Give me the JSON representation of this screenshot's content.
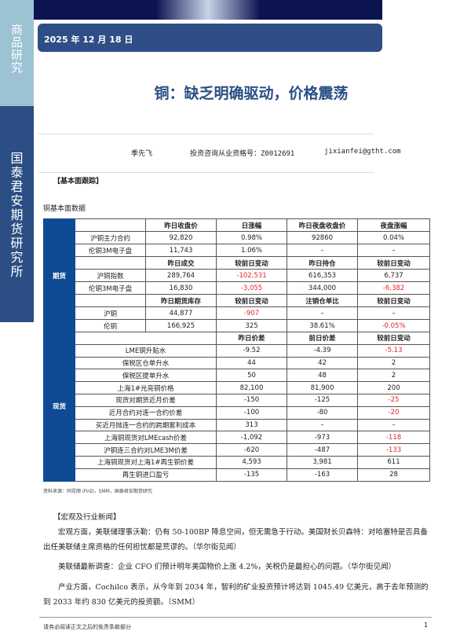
{
  "sidebar": {
    "top": "商品研究",
    "bottom": "国泰君安期货研究所"
  },
  "date": "2025 年 12 月 18 日",
  "title": "铜：缺乏明确驱动，价格震荡",
  "author": {
    "name": "季先飞",
    "license": "投资咨询从业资格号：Z0012691",
    "email": "jixianfei@gtht.com"
  },
  "section1": "【基本面跟踪】",
  "table_title": "铜基本面数据",
  "futures": {
    "label": "期货",
    "rows": [
      [
        {
          "t": "",
          "h": 0
        },
        {
          "t": "昨日收盘价",
          "h": 1
        },
        {
          "t": "日涨幅",
          "h": 1
        },
        {
          "t": "昨日夜盘收盘价",
          "h": 1
        },
        {
          "t": "夜盘涨幅",
          "h": 1
        }
      ],
      [
        {
          "t": "沪铜主力合约"
        },
        {
          "t": "92,820"
        },
        {
          "t": "0.98%"
        },
        {
          "t": "92860"
        },
        {
          "t": "0.04%"
        }
      ],
      [
        {
          "t": "伦铜3M电子盘"
        },
        {
          "t": "11,743"
        },
        {
          "t": "1.06%"
        },
        {
          "t": "–"
        },
        {
          "t": "–"
        }
      ],
      [
        {
          "t": ""
        },
        {
          "t": "昨日成交",
          "h": 1
        },
        {
          "t": "较前日变动",
          "h": 1
        },
        {
          "t": "昨日持仓",
          "h": 1
        },
        {
          "t": "较前日变动",
          "h": 1
        }
      ],
      [
        {
          "t": "沪铜指数"
        },
        {
          "t": "289,764"
        },
        {
          "t": "-102,531",
          "r": 1
        },
        {
          "t": "616,353"
        },
        {
          "t": "6,737"
        }
      ],
      [
        {
          "t": "伦铜3M电子盘"
        },
        {
          "t": "16,830"
        },
        {
          "t": "-3,055",
          "r": 1
        },
        {
          "t": "344,000"
        },
        {
          "t": "-6,382",
          "r": 1
        }
      ],
      [
        {
          "t": ""
        },
        {
          "t": "昨日期货库存",
          "h": 1
        },
        {
          "t": "较前日变动",
          "h": 1
        },
        {
          "t": "注销仓单比",
          "h": 1
        },
        {
          "t": "较前日变动",
          "h": 1
        }
      ],
      [
        {
          "t": "沪铜"
        },
        {
          "t": "44,877"
        },
        {
          "t": "-907",
          "r": 1
        },
        {
          "t": "–"
        },
        {
          "t": "–"
        }
      ],
      [
        {
          "t": "伦铜"
        },
        {
          "t": "166,925"
        },
        {
          "t": "325"
        },
        {
          "t": "38.61%"
        },
        {
          "t": "-0.05%",
          "r": 1
        }
      ]
    ]
  },
  "spot": {
    "label": "现货",
    "rows": [
      [
        {
          "t": ""
        },
        {
          "t": "昨日价差",
          "h": 1
        },
        {
          "t": "前日价差",
          "h": 1
        },
        {
          "t": "较前日变动",
          "h": 1
        }
      ],
      [
        {
          "t": "LME铜升贴水"
        },
        {
          "t": "-9.52"
        },
        {
          "t": "-4.39"
        },
        {
          "t": "-5.13",
          "r": 1
        }
      ],
      [
        {
          "t": "保税区仓单升水"
        },
        {
          "t": "44"
        },
        {
          "t": "42"
        },
        {
          "t": "2"
        }
      ],
      [
        {
          "t": "保税区提单升水"
        },
        {
          "t": "50"
        },
        {
          "t": "48"
        },
        {
          "t": "2"
        }
      ],
      [
        {
          "t": "上海1#光亮铜价格"
        },
        {
          "t": "82,100"
        },
        {
          "t": "81,900"
        },
        {
          "t": "200"
        }
      ],
      [
        {
          "t": "现货对期货近月价差"
        },
        {
          "t": "-150"
        },
        {
          "t": "-125"
        },
        {
          "t": "-25",
          "r": 1
        }
      ],
      [
        {
          "t": "近月合约对连一合约价差"
        },
        {
          "t": "-100"
        },
        {
          "t": "-80"
        },
        {
          "t": "-20",
          "r": 1
        }
      ],
      [
        {
          "t": "买近月抛连一合约的跨期套利成本"
        },
        {
          "t": "313"
        },
        {
          "t": "–"
        },
        {
          "t": "–"
        }
      ],
      [
        {
          "t": "上海铜现货对LMEcash价差"
        },
        {
          "t": "-1,092"
        },
        {
          "t": "-973"
        },
        {
          "t": "-118",
          "r": 1
        }
      ],
      [
        {
          "t": "沪铜连三合约对LME3M价差"
        },
        {
          "t": "-620"
        },
        {
          "t": "-487"
        },
        {
          "t": "-133",
          "r": 1
        }
      ],
      [
        {
          "t": "上海铜现货对上海1#再生铜价差"
        },
        {
          "t": "4,593"
        },
        {
          "t": "3,981"
        },
        {
          "t": "611"
        }
      ],
      [
        {
          "t": "再生铜进口盈亏"
        },
        {
          "t": "-135"
        },
        {
          "t": "-163"
        },
        {
          "t": "28"
        }
      ]
    ]
  },
  "source": "资料来源：同花顺 iFinD，SMM，国泰君安期货研究",
  "section2": "【宏观及行业新闻】",
  "news": [
    "宏观方面，美联储理事沃勒：仍有 50-100BP 降息空间，但无需急于行动。美国财长贝森特：对哈塞特是否具备出任美联储主席资格的任何担忧都是荒谬的。（华尔街见闻）",
    "美联储最新调查：企业 CFO 们预计明年美国物价上涨 4.2%，关税仍是最担心的问题。（华尔街见闻）",
    "产业方面，Cochilco 表示，从今年到 2034 年，智利的矿业投资预计将达到 1045.49 亿美元，高于去年预测的到 2033 年约 830 亿美元的投资额。（SMM）"
  ],
  "footer": "请务必阅读正文之后的免责条款部分",
  "page": "1",
  "colors": {
    "navy": "#2b4e84",
    "table_blue": "#0f4a94",
    "negative": "#e8232a"
  }
}
